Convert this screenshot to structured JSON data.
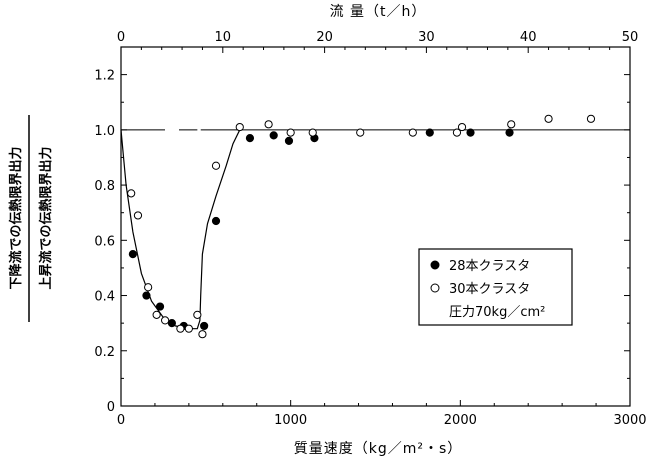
{
  "chart_data": {
    "type": "scatter",
    "xlabel": "質量速度（kg／m²・s）",
    "x2label": "流 量（t／h）",
    "ylabel_top": "下降流での伝熱限界出力",
    "ylabel_bottom": "上昇流での伝熱限界出力",
    "xlim": [
      0,
      3000
    ],
    "x2lim": [
      0,
      50
    ],
    "ylim": [
      0,
      1.3
    ],
    "xticks": [
      "0",
      "1000",
      "2000",
      "3000"
    ],
    "x2ticks": [
      "0",
      "10",
      "20",
      "30",
      "40",
      "50"
    ],
    "yticks": [
      "0",
      "0.2",
      "0.4",
      "0.6",
      "0.8",
      "1.0",
      "1.2"
    ],
    "legend": {
      "position": "lower-right",
      "entries": [
        "28本クラスタ",
        "30本クラスタ"
      ],
      "note": "圧力70kg／cm²"
    },
    "reference_line_y": 1.0,
    "series": [
      {
        "name": "28本クラスタ",
        "marker": "filled-circle",
        "points": [
          [
            70,
            0.55
          ],
          [
            150,
            0.4
          ],
          [
            230,
            0.36
          ],
          [
            300,
            0.3
          ],
          [
            370,
            0.29
          ],
          [
            490,
            0.29
          ],
          [
            560,
            0.67
          ],
          [
            760,
            0.97
          ],
          [
            900,
            0.98
          ],
          [
            990,
            0.96
          ],
          [
            1140,
            0.97
          ],
          [
            1820,
            0.99
          ],
          [
            2060,
            0.99
          ],
          [
            2290,
            0.99
          ]
        ]
      },
      {
        "name": "30本クラスタ",
        "marker": "open-circle",
        "points": [
          [
            60,
            0.77
          ],
          [
            100,
            0.69
          ],
          [
            160,
            0.43
          ],
          [
            210,
            0.33
          ],
          [
            260,
            0.31
          ],
          [
            350,
            0.28
          ],
          [
            400,
            0.28
          ],
          [
            450,
            0.33
          ],
          [
            480,
            0.26
          ],
          [
            560,
            0.87
          ],
          [
            700,
            1.01
          ],
          [
            870,
            1.02
          ],
          [
            1000,
            0.99
          ],
          [
            1130,
            0.99
          ],
          [
            1410,
            0.99
          ],
          [
            1720,
            0.99
          ],
          [
            1980,
            0.99
          ],
          [
            2010,
            1.01
          ],
          [
            2300,
            1.02
          ],
          [
            2520,
            1.04
          ],
          [
            2770,
            1.04
          ]
        ]
      }
    ],
    "fit_curve": [
      [
        0,
        1.0
      ],
      [
        30,
        0.8
      ],
      [
        70,
        0.63
      ],
      [
        120,
        0.48
      ],
      [
        180,
        0.38
      ],
      [
        250,
        0.32
      ],
      [
        320,
        0.29
      ],
      [
        400,
        0.28
      ],
      [
        450,
        0.28
      ],
      [
        465,
        0.31
      ],
      [
        470,
        0.4
      ],
      [
        480,
        0.55
      ],
      [
        510,
        0.66
      ],
      [
        560,
        0.76
      ],
      [
        620,
        0.87
      ],
      [
        660,
        0.95
      ],
      [
        700,
        1.0
      ]
    ]
  }
}
